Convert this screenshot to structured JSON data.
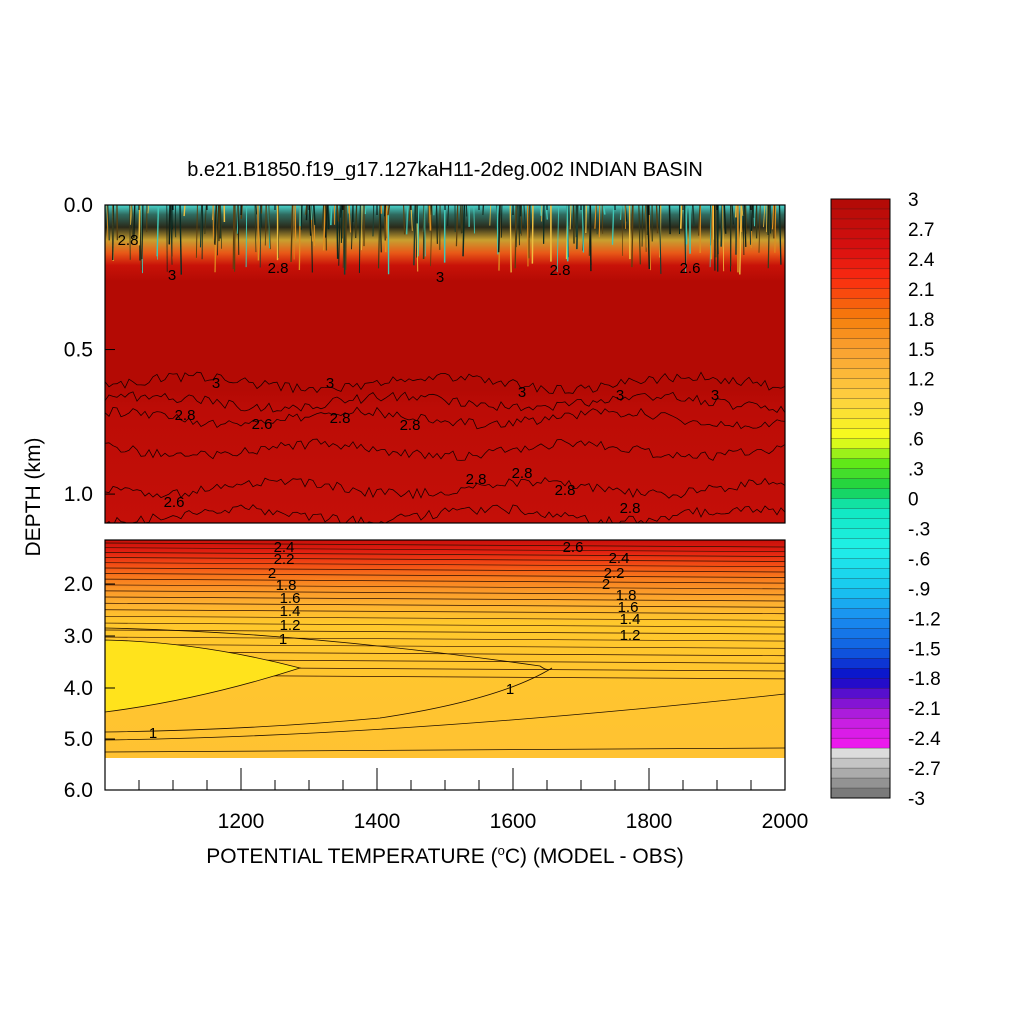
{
  "chart_data": {
    "type": "heatmap",
    "title": "b.e21.B1850.f19_g17.127kaH11-2deg.002 INDIAN BASIN",
    "xlabel_prefix": "POTENTIAL TEMPERATURE (",
    "xlabel_sup": "o",
    "xlabel_suffix": "C) (MODEL - OBS)",
    "ylabel": "DEPTH (km)",
    "xlim": [
      1000,
      2000
    ],
    "x_ticks": [
      "1200",
      "1400",
      "1600",
      "1800",
      "2000"
    ],
    "upper_panel": {
      "ylim": [
        0.0,
        1.1
      ],
      "y_ticks": [
        "0.0",
        "0.5",
        "1.0"
      ],
      "contour_labels": [
        "3",
        "2.8",
        "2.6",
        "3",
        "2.8",
        "2.6",
        "2.8",
        "3",
        "3",
        "3",
        "3",
        "3",
        "2.8",
        "2.8",
        "2.8",
        "2.8",
        "2.8",
        "2.8",
        "2.8",
        "2.6"
      ]
    },
    "lower_panel": {
      "ylim": [
        1.0,
        6.0
      ],
      "y_ticks": [
        "2.0",
        "3.0",
        "4.0",
        "5.0",
        "6.0"
      ],
      "contour_labels": [
        "2.4",
        "2.2",
        "2",
        "1.8",
        "1.6",
        "1.4",
        "1.2",
        "1",
        "1",
        "1",
        "2.6",
        "2.4",
        "2.2",
        "2",
        "1.8",
        "1.6",
        "1.4",
        "1.2"
      ]
    },
    "colorbar": {
      "labels": [
        "3",
        "2.7",
        "2.4",
        "2.1",
        "1.8",
        "1.5",
        "1.2",
        ".9",
        ".6",
        ".3",
        "0",
        "-.3",
        "-.6",
        "-.9",
        "-1.2",
        "-1.5",
        "-1.8",
        "-2.1",
        "-2.4",
        "-2.7",
        "-3"
      ],
      "range": [
        -3,
        3
      ],
      "step": 0.1
    }
  }
}
